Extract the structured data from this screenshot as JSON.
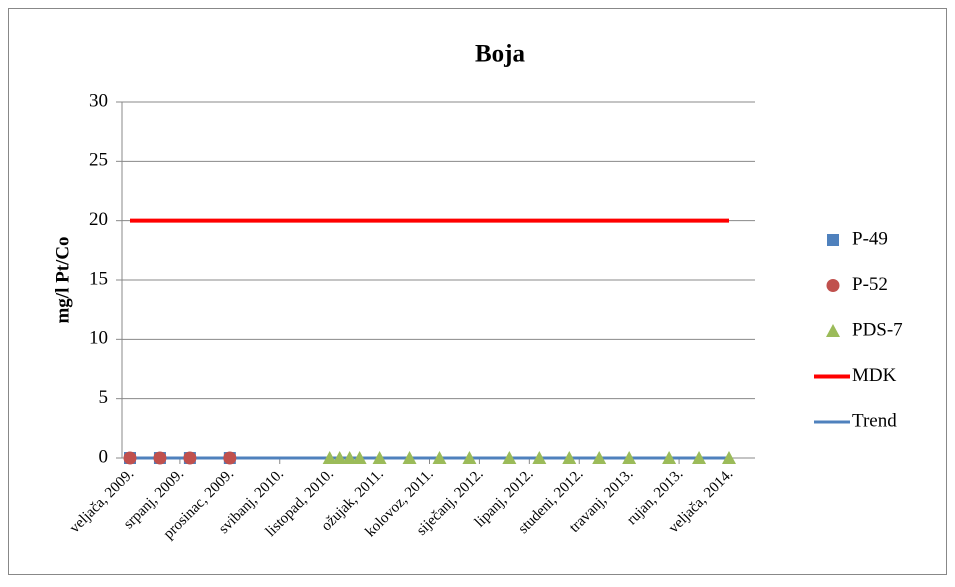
{
  "chart_data": {
    "type": "scatter",
    "title": "Boja",
    "y_label": "mg/l Pt/Co",
    "ylim": [
      0,
      30
    ],
    "yticks": [
      0,
      5,
      10,
      15,
      20,
      25,
      30
    ],
    "grid": true,
    "legend": "right",
    "xticks": [
      {
        "value": "2009-02",
        "label": "veljača, 2009."
      },
      {
        "value": "2009-07",
        "label": "srpanj, 2009."
      },
      {
        "value": "2009-12",
        "label": "prosinac, 2009."
      },
      {
        "value": "2010-05",
        "label": "svibanj, 2010."
      },
      {
        "value": "2010-10",
        "label": "listopad, 2010."
      },
      {
        "value": "2011-03",
        "label": "ožujak, 2011."
      },
      {
        "value": "2011-08",
        "label": "kolovoz, 2011."
      },
      {
        "value": "2012-01",
        "label": "siječanj, 2012."
      },
      {
        "value": "2012-06",
        "label": "lipanj, 2012."
      },
      {
        "value": "2012-11",
        "label": "studeni, 2012."
      },
      {
        "value": "2013-04",
        "label": "travanj, 2013."
      },
      {
        "value": "2013-09",
        "label": "rujan, 2013."
      },
      {
        "value": "2014-02",
        "label": "veljača, 2014."
      }
    ],
    "series": [
      {
        "name": "P-49",
        "marker": "square",
        "color": "#4f81bd",
        "x": [
          "2009-02",
          "2009-05",
          "2009-08",
          "2009-12"
        ],
        "values": [
          0,
          0,
          0,
          0
        ]
      },
      {
        "name": "P-52",
        "marker": "circle",
        "color": "#c0504d",
        "x": [
          "2009-02",
          "2009-05",
          "2009-08",
          "2009-12"
        ],
        "values": [
          0,
          0,
          0,
          0
        ]
      },
      {
        "name": "PDS-7",
        "marker": "triangle",
        "color": "#9bbb59",
        "x": [
          "2010-10",
          "2010-11",
          "2010-12",
          "2011-01",
          "2011-03",
          "2011-06",
          "2011-09",
          "2011-12",
          "2012-04",
          "2012-07",
          "2012-10",
          "2013-01",
          "2013-04",
          "2013-08",
          "2013-11",
          "2014-02"
        ],
        "values": [
          0,
          0,
          0,
          0,
          0,
          0,
          0,
          0,
          0,
          0,
          0,
          0,
          0,
          0,
          0,
          0
        ]
      },
      {
        "name": "MDK",
        "marker": "line",
        "color": "#ff0000",
        "x": [
          "2009-02",
          "2014-02"
        ],
        "values": [
          20,
          20
        ]
      },
      {
        "name": "Trend",
        "marker": "line",
        "color": "#4f81bd",
        "x": [
          "2009-02",
          "2014-02"
        ],
        "values": [
          0,
          0
        ]
      }
    ]
  }
}
